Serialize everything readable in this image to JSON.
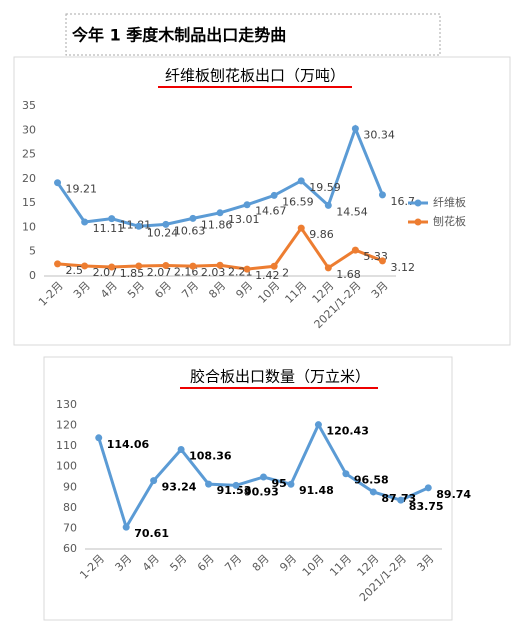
{
  "page_title": "今年 1 季度木制品出口走势曲",
  "chart_data": [
    {
      "type": "line",
      "title": "纤维板刨花板出口（万吨）",
      "categories": [
        "1-2月",
        "3月",
        "4月",
        "5月",
        "6月",
        "7月",
        "8月",
        "9月",
        "10月",
        "11月",
        "12月",
        "2021/1-2月",
        "3月"
      ],
      "series": [
        {
          "name": "纤维板",
          "color": "#5b9bd5",
          "values": [
            19.21,
            11.11,
            11.81,
            10.24,
            10.63,
            11.86,
            13.01,
            14.67,
            16.59,
            19.59,
            14.54,
            30.34,
            16.7
          ]
        },
        {
          "name": "刨花板",
          "color": "#ed7d31",
          "values": [
            2.5,
            2.07,
            1.85,
            2.07,
            2.16,
            2.03,
            2.21,
            1.42,
            2,
            9.86,
            1.68,
            5.33,
            3.12
          ]
        }
      ],
      "ylim": [
        0,
        35
      ],
      "yticks": [
        0,
        5,
        10,
        15,
        20,
        25,
        30,
        35
      ],
      "grid": false,
      "legend": "right"
    },
    {
      "type": "line",
      "title": "胶合板出口数量（万立米）",
      "categories": [
        "1-2月",
        "3月",
        "4月",
        "5月",
        "6月",
        "7月",
        "8月",
        "9月",
        "10月",
        "11月",
        "12月",
        "2021/1-2月",
        "3月"
      ],
      "series": [
        {
          "color": "#5b9bd5",
          "values": [
            114.06,
            70.61,
            93.24,
            108.36,
            91.53,
            90.93,
            95,
            91.48,
            120.43,
            96.58,
            87.73,
            83.75,
            89.74
          ]
        }
      ],
      "ylim": [
        60,
        130
      ],
      "yticks": [
        60,
        70,
        80,
        90,
        100,
        110,
        120,
        130
      ],
      "grid": false
    }
  ]
}
